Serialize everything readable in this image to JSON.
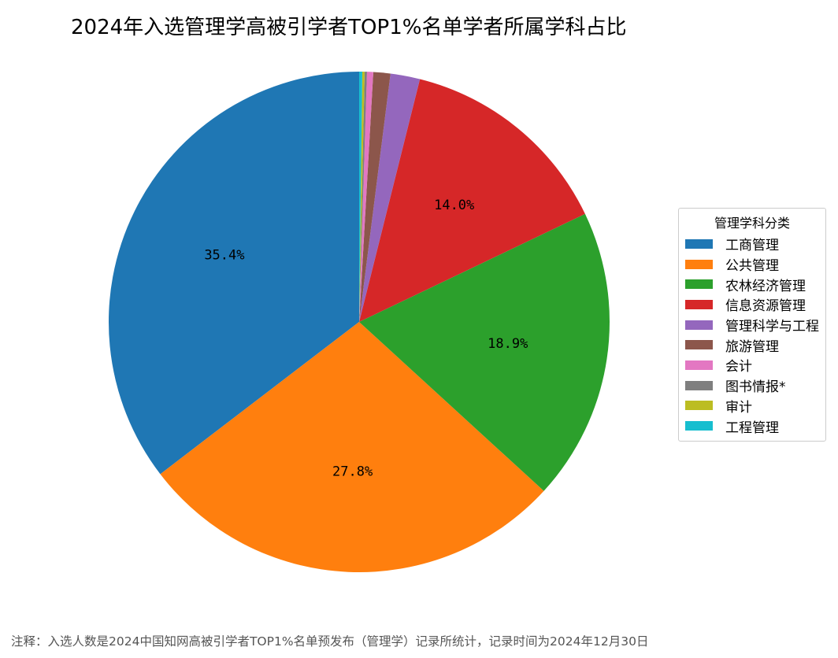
{
  "chart_data": {
    "type": "pie",
    "title": "2024年入选管理学高被引学者TOP1%名单学者所属学科占比",
    "legend_title": "管理学科分类",
    "legend_position": "right",
    "start_angle_deg": 90,
    "direction": "counterclockwise",
    "slices": [
      {
        "label": "工商管理",
        "value": 35.4,
        "pct_label": "35.4%",
        "color": "#1f77b4"
      },
      {
        "label": "公共管理",
        "value": 27.8,
        "pct_label": "27.8%",
        "color": "#ff7f0e"
      },
      {
        "label": "农林经济管理",
        "value": 18.9,
        "pct_label": "18.9%",
        "color": "#2ca02c"
      },
      {
        "label": "信息资源管理",
        "value": 14.0,
        "pct_label": "14.0%",
        "color": "#d62728"
      },
      {
        "label": "管理科学与工程",
        "value": 1.9,
        "pct_label": "",
        "color": "#9467bd"
      },
      {
        "label": "旅游管理",
        "value": 1.1,
        "pct_label": "",
        "color": "#8c564b"
      },
      {
        "label": "会计",
        "value": 0.4,
        "pct_label": "",
        "color": "#e377c2"
      },
      {
        "label": "图书情报*",
        "value": 0.15,
        "pct_label": "",
        "color": "#7f7f7f"
      },
      {
        "label": "审计",
        "value": 0.15,
        "pct_label": "",
        "color": "#bcbd22"
      },
      {
        "label": "工程管理",
        "value": 0.2,
        "pct_label": "",
        "color": "#17becf"
      }
    ]
  },
  "footnote": "注释：入选人数是2024中国知网高被引学者TOP1%名单预发布（管理学）记录所统计，记录时间为2024年12月30日"
}
